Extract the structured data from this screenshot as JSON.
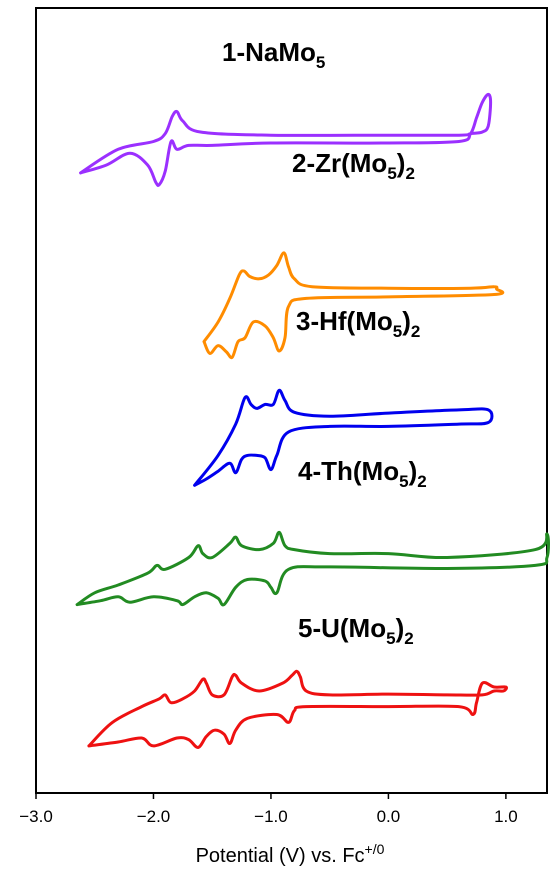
{
  "chart_data": {
    "type": "line",
    "xlabel": "Potential (V) vs. Fc",
    "xlabel_sup": "+/0",
    "ylabel": "",
    "xlim": [
      -3.0,
      1.35
    ],
    "xticks": [
      "−3.0",
      "−2.0",
      "−1.0",
      "0.0",
      "1.0"
    ],
    "xtick_values": [
      -3.0,
      -2.0,
      -1.0,
      0.0,
      1.0
    ],
    "grid": false,
    "legend": "none",
    "y_units": "current (arbitrary, stacked offsets)",
    "series": [
      {
        "name": "1-NaMo5",
        "label": {
          "main": "1-NaMo",
          "sub": "5",
          "tail": ""
        },
        "color": "#9b30ff",
        "baseline": 0.83,
        "x": [
          -2.62,
          -2.4,
          -2.2,
          -2.05,
          -1.98,
          -1.95,
          -1.9,
          -1.85,
          -1.8,
          -1.7,
          -1.5,
          -1.0,
          0.0,
          0.6,
          0.7,
          0.75,
          0.8,
          0.85,
          0.87,
          0.85,
          0.8,
          0.7,
          0.6,
          0.0,
          -1.0,
          -1.6,
          -1.75,
          -1.8,
          -1.84,
          -1.9,
          -2.0,
          -2.3,
          -2.62
        ],
        "y": [
          0.79,
          0.8,
          0.815,
          0.8,
          0.778,
          0.775,
          0.792,
          0.83,
          0.82,
          0.825,
          0.825,
          0.828,
          0.828,
          0.83,
          0.84,
          0.86,
          0.88,
          0.89,
          0.88,
          0.85,
          0.842,
          0.84,
          0.838,
          0.838,
          0.838,
          0.842,
          0.856,
          0.868,
          0.862,
          0.84,
          0.83,
          0.82,
          0.79
        ]
      },
      {
        "name": "2-Zr(Mo5)2",
        "label": {
          "main": "2-Zr(Mo",
          "sub": "5",
          "tail": ")2"
        },
        "color": "#ff8c00",
        "baseline": 0.64,
        "x": [
          -1.57,
          -1.52,
          -1.45,
          -1.38,
          -1.33,
          -1.28,
          -1.22,
          -1.15,
          -1.05,
          -0.98,
          -0.93,
          -0.88,
          -0.85,
          -0.7,
          0.0,
          0.9,
          0.92,
          0.9,
          0.7,
          0.0,
          -0.65,
          -0.8,
          -0.85,
          -0.89,
          -0.95,
          -1.02,
          -1.1,
          -1.18,
          -1.23,
          -1.27,
          -1.35,
          -1.45,
          -1.57
        ],
        "y": [
          0.575,
          0.56,
          0.57,
          0.562,
          0.555,
          0.575,
          0.58,
          0.6,
          0.595,
          0.58,
          0.563,
          0.58,
          0.62,
          0.63,
          0.632,
          0.635,
          0.642,
          0.645,
          0.643,
          0.643,
          0.645,
          0.655,
          0.67,
          0.688,
          0.672,
          0.66,
          0.655,
          0.658,
          0.665,
          0.66,
          0.63,
          0.6,
          0.575
        ]
      },
      {
        "name": "3-Hf(Mo5)2",
        "label": {
          "main": "3-Hf(Mo",
          "sub": "5",
          "tail": ")2"
        },
        "color": "#0000ee",
        "baseline": 0.48,
        "x": [
          -1.65,
          -1.55,
          -1.45,
          -1.35,
          -1.3,
          -1.25,
          -1.2,
          -1.12,
          -1.05,
          -1.0,
          -0.95,
          -0.85,
          -0.5,
          0.0,
          0.6,
          0.85,
          0.85,
          0.6,
          0.0,
          -0.5,
          -0.8,
          -0.88,
          -0.93,
          -0.98,
          -1.05,
          -1.12,
          -1.17,
          -1.22,
          -1.3,
          -1.45,
          -1.65
        ],
        "y": [
          0.392,
          0.4,
          0.41,
          0.42,
          0.408,
          0.425,
          0.43,
          0.43,
          0.427,
          0.412,
          0.43,
          0.46,
          0.467,
          0.467,
          0.47,
          0.472,
          0.488,
          0.488,
          0.484,
          0.48,
          0.485,
          0.5,
          0.513,
          0.495,
          0.495,
          0.49,
          0.495,
          0.504,
          0.47,
          0.43,
          0.392
        ]
      },
      {
        "name": "4-Th(Mo5)2",
        "label": {
          "main": "4-Th(Mo",
          "sub": "5",
          "tail": ")2"
        },
        "color": "#228b22",
        "baseline": 0.3,
        "x": [
          -2.65,
          -2.45,
          -2.3,
          -2.2,
          -2.0,
          -1.8,
          -1.75,
          -1.65,
          -1.55,
          -1.45,
          -1.4,
          -1.3,
          -1.2,
          -1.05,
          -1.0,
          -0.95,
          -0.85,
          -0.5,
          0.5,
          1.25,
          1.35,
          1.35,
          1.25,
          0.5,
          0.0,
          -0.5,
          -0.8,
          -0.88,
          -0.93,
          -0.98,
          -1.1,
          -1.25,
          -1.3,
          -1.35,
          -1.5,
          -1.58,
          -1.62,
          -1.7,
          -1.9,
          -1.97,
          -2.05,
          -2.3,
          -2.5,
          -2.65
        ],
        "y": [
          0.24,
          0.245,
          0.25,
          0.243,
          0.25,
          0.245,
          0.24,
          0.25,
          0.255,
          0.248,
          0.24,
          0.262,
          0.272,
          0.27,
          0.262,
          0.255,
          0.285,
          0.288,
          0.286,
          0.29,
          0.3,
          0.33,
          0.31,
          0.3,
          0.305,
          0.305,
          0.31,
          0.315,
          0.332,
          0.318,
          0.31,
          0.315,
          0.326,
          0.318,
          0.3,
          0.305,
          0.315,
          0.3,
          0.285,
          0.29,
          0.28,
          0.265,
          0.255,
          0.24
        ]
      },
      {
        "name": "5-U(Mo5)2",
        "label": {
          "main": "5-U(Mo",
          "sub": "5",
          "tail": ")2"
        },
        "color": "#ee1111",
        "baseline": 0.12,
        "x": [
          -2.55,
          -2.3,
          -2.1,
          -2.0,
          -1.8,
          -1.7,
          -1.62,
          -1.55,
          -1.48,
          -1.4,
          -1.35,
          -1.3,
          -1.2,
          -0.95,
          -0.85,
          -0.8,
          -0.7,
          0.0,
          0.6,
          0.72,
          0.75,
          0.8,
          0.9,
          1.0,
          0.98,
          0.9,
          0.8,
          0.5,
          0.0,
          -0.5,
          -0.7,
          -0.75,
          -0.78,
          -0.82,
          -0.9,
          -1.1,
          -1.25,
          -1.3,
          -1.33,
          -1.4,
          -1.5,
          -1.55,
          -1.58,
          -1.65,
          -1.75,
          -1.85,
          -1.9,
          -1.95,
          -2.1,
          -2.35,
          -2.55
        ],
        "y": [
          0.06,
          0.065,
          0.07,
          0.06,
          0.07,
          0.068,
          0.058,
          0.072,
          0.08,
          0.075,
          0.063,
          0.08,
          0.095,
          0.1,
          0.09,
          0.105,
          0.11,
          0.11,
          0.11,
          0.1,
          0.115,
          0.14,
          0.135,
          0.135,
          0.13,
          0.13,
          0.125,
          0.125,
          0.126,
          0.125,
          0.13,
          0.148,
          0.155,
          0.15,
          0.14,
          0.13,
          0.14,
          0.15,
          0.148,
          0.125,
          0.125,
          0.14,
          0.145,
          0.13,
          0.12,
          0.115,
          0.125,
          0.12,
          0.11,
          0.09,
          0.06
        ]
      }
    ]
  }
}
